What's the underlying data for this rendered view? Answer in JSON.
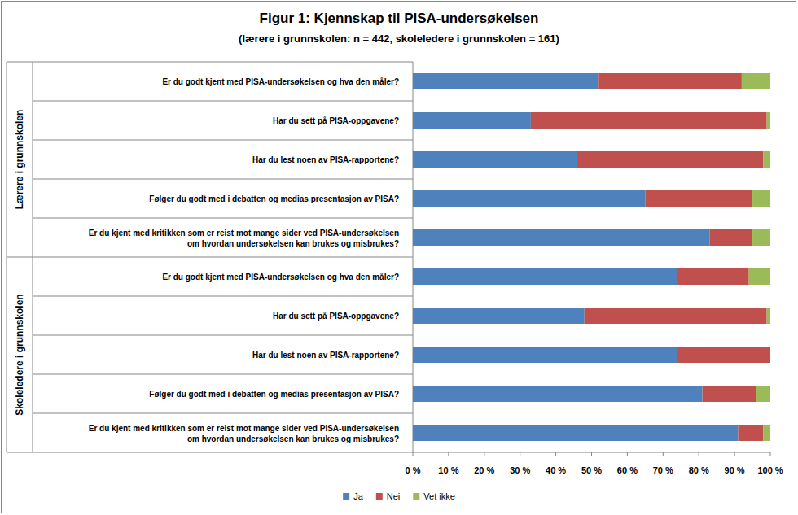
{
  "chart_data": {
    "type": "bar",
    "orientation": "horizontal",
    "stacked": true,
    "title": "Figur 1: Kjennskap  til PISA-undersøkelsen",
    "subtitle": "(lærere i grunnskolen: n = 442, skoleledere i grunnskolen = 161)",
    "categories": [
      "Er du godt kjent med PISA-undersøkelsen  og hva den måler?",
      "Har du sett på PISA-oppgavene?",
      "Har du lest noen av PISA-rapportene?",
      "Følger du godt med i debatten og medias presentasjon av PISA?",
      "Er du kjent med kritikken som er reist mot mange sider ved PISA-undersøkelsen\nom hvordan undersøkelsen kan brukes og misbrukes?",
      "Er du godt kjent med PISA-undersøkelsen  og hva den måler?",
      "Har du sett på PISA-oppgavene?",
      "Har du lest noen av PISA-rapportene?",
      "Følger du godt med i debatten og medias presentasjon av PISA?",
      "Er du kjent med kritikken som er reist mot mange sider ved PISA-undersøkelsen\nom hvordan undersøkelsen kan brukes og misbrukes?"
    ],
    "category_groups": [
      "Lærere i grunnskolen",
      "Lærere i grunnskolen",
      "Lærere i grunnskolen",
      "Lærere i grunnskolen",
      "Lærere i grunnskolen",
      "Skoleledere i grunnskolen",
      "Skoleledere i grunnskolen",
      "Skoleledere i grunnskolen",
      "Skoleledere i grunnskolen",
      "Skoleledere i grunnskolen"
    ],
    "series": [
      {
        "name": "Ja",
        "color": "#4f81bd",
        "values": [
          52,
          33,
          46,
          65,
          83,
          74,
          48,
          74,
          81,
          91
        ]
      },
      {
        "name": "Nei",
        "color": "#c0504d",
        "values": [
          40,
          66,
          52,
          30,
          12,
          20,
          51,
          26,
          15,
          7
        ]
      },
      {
        "name": "Vet ikke",
        "color": "#9bbb59",
        "values": [
          8,
          1,
          2,
          5,
          5,
          6,
          1,
          0,
          4,
          2
        ]
      }
    ],
    "xlim": [
      0,
      100
    ],
    "xticks": [
      {
        "value": 0,
        "label": "0 %"
      },
      {
        "value": 10,
        "label": "10 %"
      },
      {
        "value": 20,
        "label": "20 %"
      },
      {
        "value": 30,
        "label": "30 %"
      },
      {
        "value": 40,
        "label": "40 %"
      },
      {
        "value": 50,
        "label": "50 %"
      },
      {
        "value": 60,
        "label": "60 %"
      },
      {
        "value": 70,
        "label": "70 %"
      },
      {
        "value": 80,
        "label": "80 %"
      },
      {
        "value": 90,
        "label": "90 %"
      },
      {
        "value": 100,
        "label": "100 %"
      }
    ],
    "grid": false,
    "legend": "bottom"
  }
}
